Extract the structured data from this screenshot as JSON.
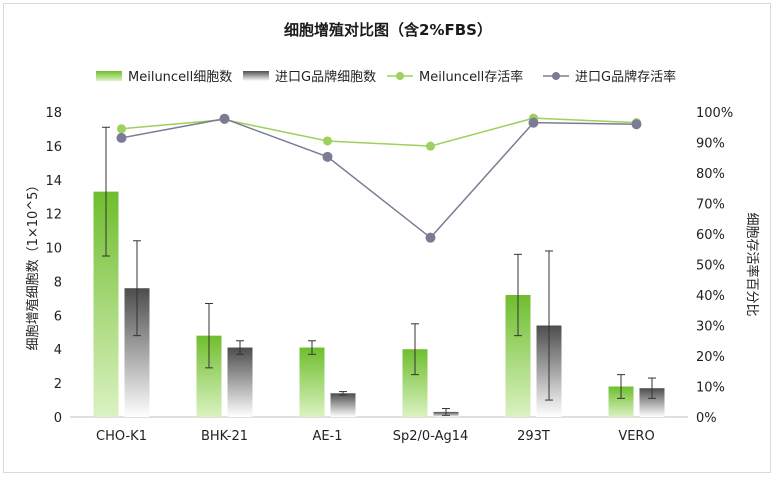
{
  "chart_data": {
    "type": "bar",
    "title": "细胞增殖对比图（含2%FBS）",
    "categories": [
      "CHO-K1",
      "BHK-21",
      "AE-1",
      "Sp2/0-Ag14",
      "293T",
      "VERO"
    ],
    "ylabel": "细胞增殖细胞数（1×10^5）",
    "y2label": "细胞存活率百分比",
    "ylim": [
      0,
      18
    ],
    "y2lim": [
      0,
      100
    ],
    "yticks": [
      "0",
      "2",
      "4",
      "6",
      "8",
      "10",
      "12",
      "14",
      "16",
      "18"
    ],
    "y2ticks": [
      "0%",
      "10%",
      "20%",
      "30%",
      "40%",
      "50%",
      "60%",
      "70%",
      "80%",
      "90%",
      "100%"
    ],
    "grid": false,
    "legend_position": "top",
    "series": [
      {
        "name": "Meiluncell细胞数",
        "kind": "bar",
        "axis": "left",
        "values": [
          13.3,
          4.8,
          4.1,
          4.0,
          7.2,
          1.8
        ],
        "error": [
          3.8,
          1.9,
          0.4,
          1.5,
          2.4,
          0.7
        ],
        "color_top": "#6fbe2e",
        "color_bottom": "#dbf2c2"
      },
      {
        "name": "进口G品牌细胞数",
        "kind": "bar",
        "axis": "left",
        "values": [
          7.6,
          4.1,
          1.4,
          0.3,
          5.4,
          1.7
        ],
        "error": [
          2.8,
          0.4,
          0.1,
          0.2,
          4.4,
          0.6
        ],
        "color_top": "#4d4d4d",
        "color_bottom": "#ffffff"
      },
      {
        "name": "Meiluncell存活率",
        "kind": "line",
        "axis": "right",
        "values": [
          94.5,
          97.5,
          90.5,
          88.8,
          98.0,
          96.5
        ],
        "color": "#9bd15c"
      },
      {
        "name": "进口G品牌存活率",
        "kind": "line",
        "axis": "right",
        "values": [
          91.5,
          97.8,
          85.3,
          58.8,
          96.5,
          96.0
        ],
        "color": "#7b7b95"
      }
    ]
  }
}
